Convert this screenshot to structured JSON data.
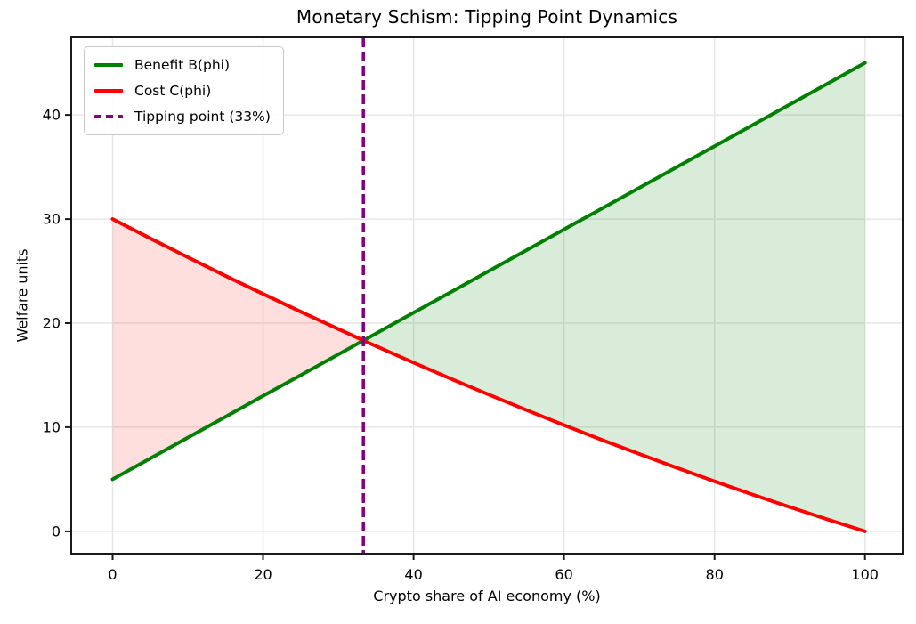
{
  "chart_data": {
    "type": "line",
    "title": "Monetary Schism: Tipping Point Dynamics",
    "xlabel": "Crypto share of AI economy (%)",
    "ylabel": "Welfare units",
    "xlim": [
      -5.5,
      105
    ],
    "ylim": [
      -2.15,
      47.45
    ],
    "xticks": [
      0,
      20,
      40,
      60,
      80,
      100
    ],
    "yticks": [
      0,
      10,
      20,
      30,
      40
    ],
    "grid": true,
    "grid_color": "#e6e6e6",
    "spine_color": "#1a1a1a",
    "legend_position": "upper left",
    "x": [
      0,
      5,
      10,
      15,
      20,
      25,
      30,
      33.33,
      35,
      40,
      45,
      50,
      55,
      60,
      65,
      70,
      75,
      80,
      85,
      90,
      95,
      100
    ],
    "series": [
      {
        "id": "benefit",
        "name": "Benefit B(phi)",
        "color": "#008000",
        "style": "solid",
        "y": [
          5,
          7,
          9,
          11,
          13,
          15,
          17,
          18.33,
          19,
          21,
          23,
          25,
          27,
          29,
          31,
          33,
          35,
          37,
          39,
          41,
          43,
          45
        ]
      },
      {
        "id": "cost",
        "name": "Cost C(phi)",
        "color": "#ff0000",
        "style": "solid",
        "y": [
          30,
          28.14,
          26.33,
          24.54,
          22.8,
          21.09,
          19.43,
          18.33,
          17.79,
          16.2,
          14.64,
          13.13,
          11.64,
          10.2,
          8.79,
          7.43,
          6.09,
          4.8,
          3.54,
          2.33,
          1.14,
          0
        ]
      }
    ],
    "vline": {
      "x": 33.33,
      "label": "Tipping point (33%)",
      "color": "#800080",
      "style": "dashed"
    },
    "crossing": {
      "x": 33.33,
      "y": 18.33
    },
    "fills": [
      {
        "name": "net-cost-region",
        "range": [
          0,
          33.33
        ],
        "upper": "Cost C(phi)",
        "lower": "Benefit B(phi)",
        "color": "rgba(255,0,0,0.13)"
      },
      {
        "name": "net-benefit-region",
        "range": [
          33.33,
          100
        ],
        "upper": "Benefit B(phi)",
        "lower": "Cost C(phi)",
        "color": "rgba(0,128,0,0.15)"
      }
    ]
  }
}
